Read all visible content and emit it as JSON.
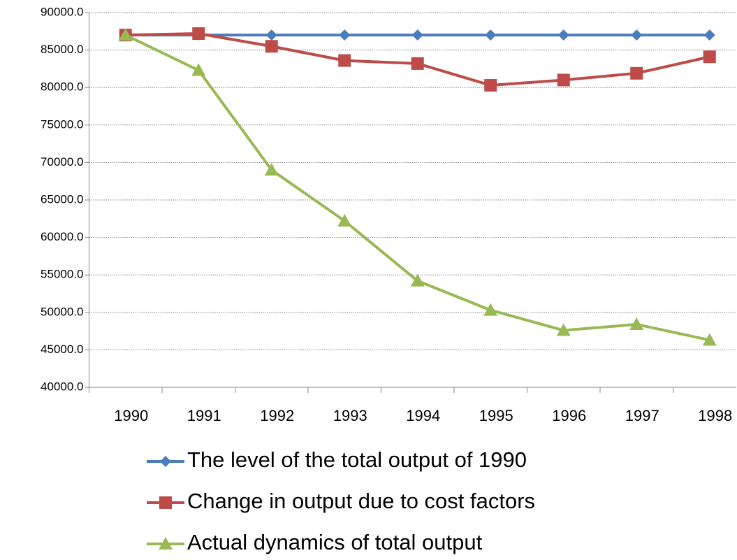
{
  "chart_data": {
    "type": "line",
    "categories": [
      "1990",
      "1991",
      "1992",
      "1993",
      "1994",
      "1995",
      "1996",
      "1997",
      "1998"
    ],
    "series": [
      {
        "name": "The level of the total output of 1990",
        "color": "#4a7ebb",
        "marker": "diamond",
        "values": [
          87000,
          87000,
          87000,
          87000,
          87000,
          87000,
          87000,
          87000,
          87000
        ]
      },
      {
        "name": "Change in output due to cost factors",
        "color": "#be4b48",
        "marker": "square",
        "values": [
          87000,
          87200,
          85500,
          83600,
          83200,
          80300,
          81000,
          81900,
          84100
        ]
      },
      {
        "name": "Actual dynamics of total output",
        "color": "#98b954",
        "marker": "triangle",
        "values": [
          87000,
          82300,
          69000,
          62200,
          54200,
          50300,
          47600,
          48400,
          46300
        ]
      }
    ],
    "ylim": [
      40000,
      90000
    ],
    "yticks": [
      {
        "value": 40000,
        "label": "40000.0"
      },
      {
        "value": 45000,
        "label": "45000.0"
      },
      {
        "value": 50000,
        "label": "50000.0"
      },
      {
        "value": 55000,
        "label": "55000.0"
      },
      {
        "value": 60000,
        "label": "60000.0"
      },
      {
        "value": 65000,
        "label": "65000.0"
      },
      {
        "value": 70000,
        "label": "70000.0"
      },
      {
        "value": 75000,
        "label": "75000.0"
      },
      {
        "value": 80000,
        "label": "80000.0"
      },
      {
        "value": 85000,
        "label": "85000.0"
      },
      {
        "value": 90000,
        "label": "90000.0"
      }
    ],
    "grid": true,
    "legend": "bottom"
  }
}
